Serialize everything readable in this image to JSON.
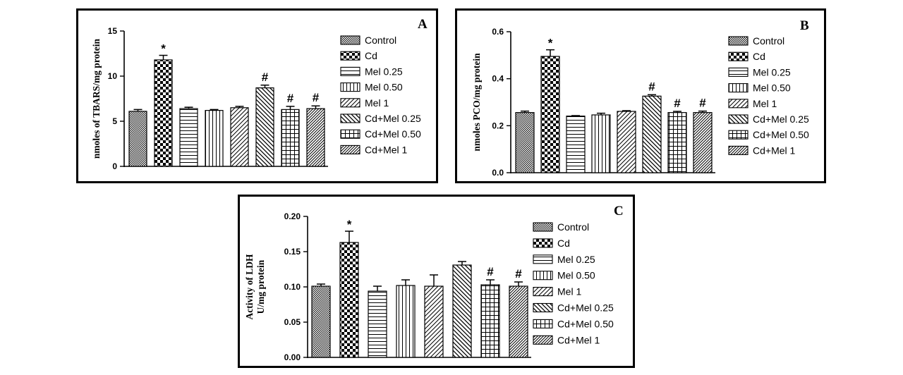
{
  "colors": {
    "ink": "#000000",
    "background": "#ffffff"
  },
  "chart_data": [
    {
      "id": "A",
      "panel_letter": "A",
      "type": "bar",
      "ylabel": [
        "nmoles of TBARS/mg protein"
      ],
      "ylim": [
        0,
        15
      ],
      "yticks": [
        0,
        5,
        10,
        15
      ],
      "yticks_labels": [
        "0",
        "5",
        "10",
        "15"
      ],
      "categories": [
        "Control",
        "Cd",
        "Mel 0.25",
        "Mel 0.50",
        "Mel 1",
        "Cd+Mel 0.25",
        "Cd+Mel 0.50",
        "Cd+Mel 1"
      ],
      "patterns": [
        "crosshatch-fine",
        "checker-coarse",
        "horizontal-lines",
        "vertical-lines",
        "diagonal-right",
        "diagonal-left",
        "grid",
        "diagonal-dense"
      ],
      "values": [
        6.1,
        11.8,
        6.4,
        6.2,
        6.5,
        8.7,
        6.3,
        6.4
      ],
      "errors": [
        0.2,
        0.5,
        0.15,
        0.1,
        0.15,
        0.3,
        0.35,
        0.3
      ],
      "significance": [
        "",
        "*",
        "",
        "",
        "",
        "#",
        "#",
        "#"
      ],
      "legend": [
        "Control",
        "Cd",
        "Mel 0.25",
        "Mel 0.50",
        "Mel 1",
        "Cd+Mel 0.25",
        "Cd+Mel 0.50",
        "Cd+Mel 1"
      ]
    },
    {
      "id": "B",
      "panel_letter": "B",
      "type": "bar",
      "ylabel": [
        "nmoles PCO/mg protein"
      ],
      "ylim": [
        0,
        0.6
      ],
      "yticks": [
        0,
        0.2,
        0.4,
        0.6
      ],
      "yticks_labels": [
        "0.0",
        "0.2",
        "0.4",
        "0.6"
      ],
      "categories": [
        "Control",
        "Cd",
        "Mel 0.25",
        "Mel 0.50",
        "Mel 1",
        "Cd+Mel 0.25",
        "Cd+Mel 0.50",
        "Cd+Mel 1"
      ],
      "patterns": [
        "crosshatch-fine",
        "checker-coarse",
        "horizontal-lines",
        "vertical-lines",
        "diagonal-right",
        "diagonal-left",
        "grid",
        "diagonal-dense"
      ],
      "values": [
        0.256,
        0.495,
        0.241,
        0.246,
        0.261,
        0.326,
        0.256,
        0.256
      ],
      "errors": [
        0.006,
        0.028,
        0.002,
        0.007,
        0.003,
        0.006,
        0.005,
        0.006
      ],
      "significance": [
        "",
        "*",
        "",
        "",
        "",
        "#",
        "#",
        "#"
      ],
      "legend": [
        "Control",
        "Cd",
        "Mel 0.25",
        "Mel 0.50",
        "Mel 1",
        "Cd+Mel 0.25",
        "Cd+Mel 0.50",
        "Cd+Mel 1"
      ]
    },
    {
      "id": "C",
      "panel_letter": "C",
      "type": "bar",
      "ylabel": [
        "Activity of LDH",
        "U/mg protein"
      ],
      "ylim": [
        0,
        0.2
      ],
      "yticks": [
        0,
        0.05,
        0.1,
        0.15,
        0.2
      ],
      "yticks_labels": [
        "0.00",
        "0.05",
        "0.10",
        "0.15",
        "0.20"
      ],
      "categories": [
        "Control",
        "Cd",
        "Mel 0.25",
        "Mel 0.50",
        "Mel 1",
        "Cd+Mel 0.25",
        "Cd+Mel 0.50",
        "Cd+Mel 1"
      ],
      "patterns": [
        "crosshatch-fine",
        "checker-coarse",
        "horizontal-lines",
        "vertical-lines",
        "diagonal-right",
        "diagonal-left",
        "grid",
        "diagonal-dense"
      ],
      "values": [
        0.101,
        0.163,
        0.094,
        0.102,
        0.101,
        0.131,
        0.103,
        0.101
      ],
      "errors": [
        0.003,
        0.016,
        0.007,
        0.008,
        0.016,
        0.005,
        0.007,
        0.006
      ],
      "significance": [
        "",
        "*",
        "",
        "",
        "",
        "",
        "#",
        "#"
      ],
      "legend": [
        "Control",
        "Cd",
        "Mel 0.25",
        "Mel 0.50",
        "Mel 1",
        "Cd+Mel 0.25",
        "Cd+Mel 0.50",
        "Cd+Mel 1"
      ]
    }
  ]
}
